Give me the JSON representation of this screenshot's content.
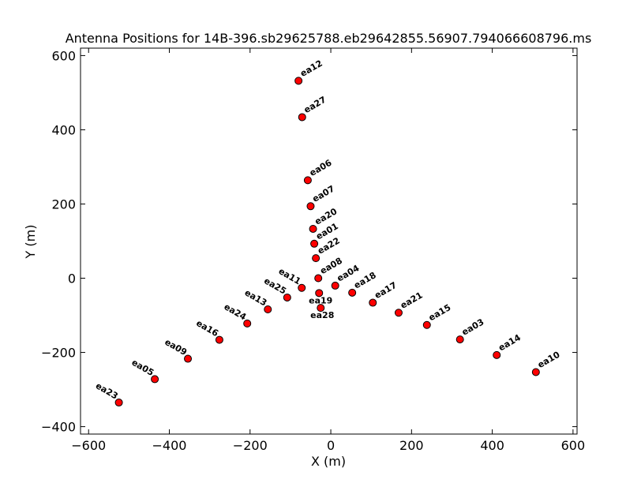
{
  "chart_data": {
    "type": "scatter",
    "title": "Antenna Positions for 14B-396.sb29625788.eb29642855.56907.794066608796.ms",
    "xlabel": "X (m)",
    "ylabel": "Y (m)",
    "xlim": [
      -620,
      610
    ],
    "ylim": [
      -420,
      620
    ],
    "xticks": [
      -600,
      -400,
      -200,
      0,
      200,
      400,
      600
    ],
    "yticks": [
      -400,
      -200,
      0,
      200,
      400,
      600
    ],
    "xtick_labels": [
      "−600",
      "−400",
      "−200",
      "0",
      "200",
      "400",
      "600"
    ],
    "ytick_labels": [
      "−400",
      "−200",
      "0",
      "200",
      "400",
      "600"
    ],
    "grid": false,
    "marker_color": "#ff0000",
    "marker_edge_color": "#000000",
    "points": [
      {
        "name": "ea12",
        "x": -80,
        "y": 532,
        "label": "ea12",
        "anchor": "ne"
      },
      {
        "name": "ea27",
        "x": -71,
        "y": 434,
        "label": "ea27",
        "anchor": "ne"
      },
      {
        "name": "ea06",
        "x": -57,
        "y": 264,
        "label": "ea06",
        "anchor": "ne"
      },
      {
        "name": "ea07",
        "x": -50,
        "y": 194,
        "label": "ea07",
        "anchor": "ne"
      },
      {
        "name": "ea20",
        "x": -44,
        "y": 133,
        "label": "ea20",
        "anchor": "ne"
      },
      {
        "name": "ea01",
        "x": -41,
        "y": 93,
        "label": "ea01",
        "anchor": "ne"
      },
      {
        "name": "ea22",
        "x": -37,
        "y": 54,
        "label": "ea22",
        "anchor": "ne"
      },
      {
        "name": "ea08",
        "x": -31,
        "y": 0,
        "label": "ea08",
        "anchor": "ne"
      },
      {
        "name": "ea04",
        "x": 11,
        "y": -20,
        "label": "ea04",
        "anchor": "ne"
      },
      {
        "name": "ea18",
        "x": 53,
        "y": -39,
        "label": "ea18",
        "anchor": "ne"
      },
      {
        "name": "ea17",
        "x": 104,
        "y": -66,
        "label": "ea17",
        "anchor": "ne"
      },
      {
        "name": "ea21",
        "x": 168,
        "y": -93,
        "label": "ea21",
        "anchor": "ne"
      },
      {
        "name": "ea15",
        "x": 238,
        "y": -126,
        "label": "ea15",
        "anchor": "ne"
      },
      {
        "name": "ea03",
        "x": 320,
        "y": -165,
        "label": "ea03",
        "anchor": "ne"
      },
      {
        "name": "ea14",
        "x": 411,
        "y": -207,
        "label": "ea14",
        "anchor": "ne"
      },
      {
        "name": "ea10",
        "x": 508,
        "y": -253,
        "label": "ea10",
        "anchor": "ne"
      },
      {
        "name": "ea19",
        "x": -29,
        "y": -40,
        "label": "ea19",
        "anchor": "below-a"
      },
      {
        "name": "ea28",
        "x": -25,
        "y": -80,
        "label": "ea28",
        "anchor": "below-b"
      },
      {
        "name": "ea11",
        "x": -72,
        "y": -26,
        "label": "ea11",
        "anchor": "nw"
      },
      {
        "name": "ea25",
        "x": -108,
        "y": -52,
        "label": "ea25",
        "anchor": "nw"
      },
      {
        "name": "ea13",
        "x": -156,
        "y": -84,
        "label": "ea13",
        "anchor": "nw"
      },
      {
        "name": "ea24",
        "x": -207,
        "y": -122,
        "label": "ea24",
        "anchor": "nw"
      },
      {
        "name": "ea16",
        "x": -276,
        "y": -166,
        "label": "ea16",
        "anchor": "nw"
      },
      {
        "name": "ea09",
        "x": -354,
        "y": -217,
        "label": "ea09",
        "anchor": "nw"
      },
      {
        "name": "ea05",
        "x": -436,
        "y": -272,
        "label": "ea05",
        "anchor": "nw"
      },
      {
        "name": "ea23",
        "x": -525,
        "y": -335,
        "label": "ea23",
        "anchor": "nw"
      }
    ]
  }
}
